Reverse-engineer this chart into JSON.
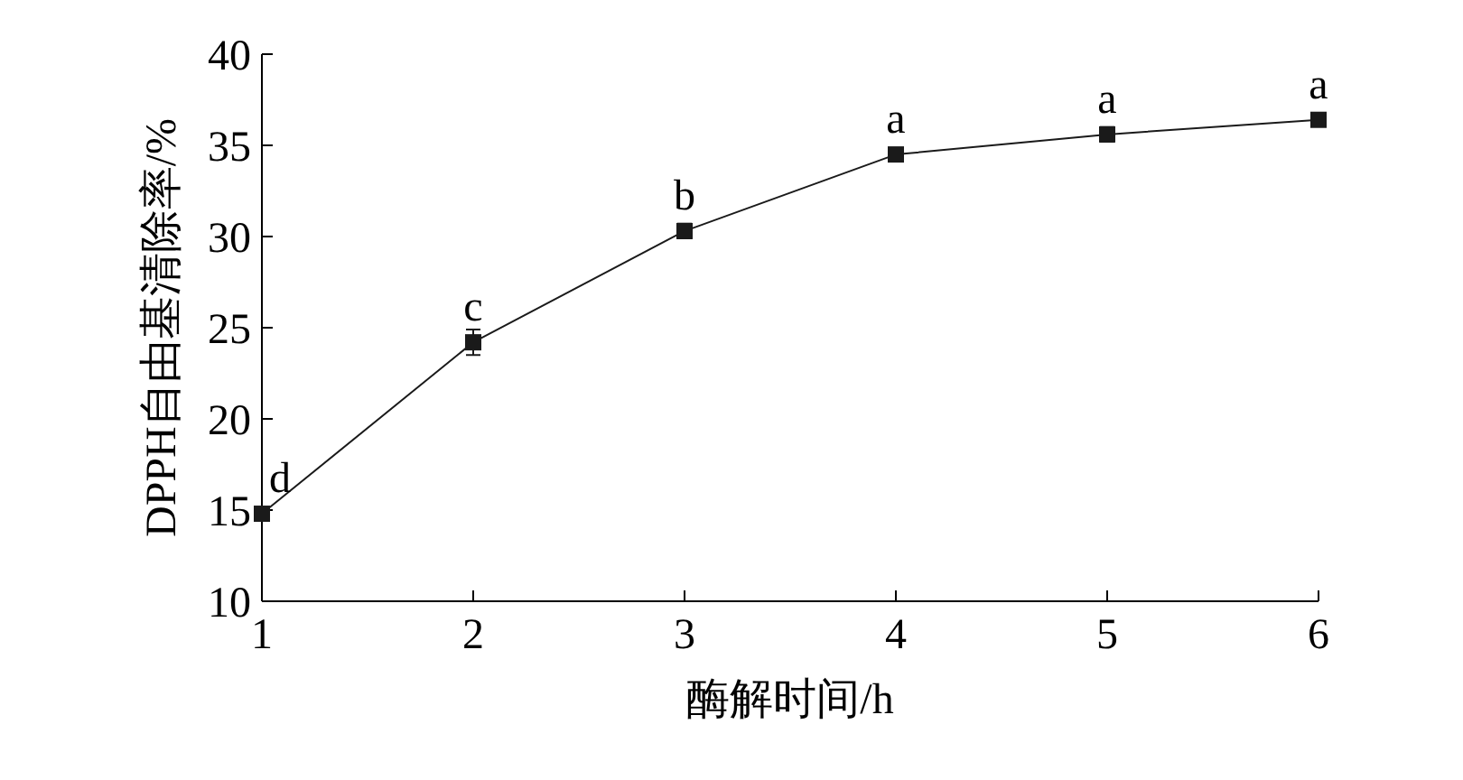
{
  "chart_data": {
    "type": "line",
    "xlabel": "酶解时间/h",
    "ylabel": "DPPH自由基清除率/%",
    "x": [
      1,
      2,
      3,
      4,
      5,
      6
    ],
    "series": [
      {
        "color": "#1a1a1a",
        "values": [
          14.8,
          24.2,
          30.3,
          34.5,
          35.6,
          36.4
        ],
        "errors": [
          null,
          0.7,
          0.4,
          null,
          0.4,
          null
        ]
      }
    ],
    "xlim": [
      1,
      6
    ],
    "xticks": [
      1,
      2,
      3,
      4,
      5,
      6
    ],
    "ylim": [
      10,
      40
    ],
    "yticks": [
      10,
      15,
      20,
      25,
      30,
      35,
      40
    ],
    "marker": "square",
    "line_style": "solid",
    "grid": false,
    "annotations": [
      {
        "text": "d",
        "x": 1,
        "y": 14.8
      },
      {
        "text": "c",
        "x": 2,
        "y": 24.2
      },
      {
        "text": "b",
        "x": 3,
        "y": 30.3
      },
      {
        "text": "a",
        "x": 4,
        "y": 34.5
      },
      {
        "text": "a",
        "x": 5,
        "y": 35.6
      },
      {
        "text": "a",
        "x": 6,
        "y": 36.4
      }
    ]
  }
}
